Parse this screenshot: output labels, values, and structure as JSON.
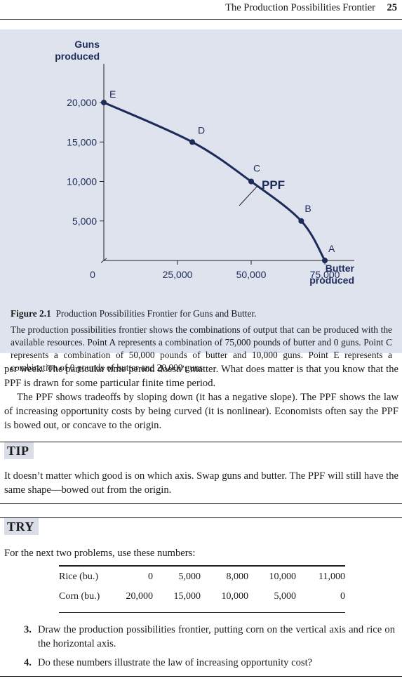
{
  "header": {
    "running_title": "The Production Possibilities Frontier",
    "page_number": "25"
  },
  "figure": {
    "label": "Figure 2.1",
    "title": "Production Possibilities Frontier for Guns and Butter.",
    "caption": "The production possibilities frontier shows the combinations of output that can be produced with the available resources. Point A represents a combination of 75,000 pounds of butter and 0 guns. Point C represents a combination of 50,000 pounds of butter and 10,000 guns. Point E represents a combination of 0 pounds of butter and 20,000 guns."
  },
  "chart_data": {
    "type": "line",
    "ylabel": [
      "Guns",
      "produced"
    ],
    "xlabel": [
      "Butter",
      "produced"
    ],
    "curve_label": "PPF",
    "xlim": [
      0,
      85000
    ],
    "ylim": [
      0,
      24000
    ],
    "x_ticks": [
      0,
      25000,
      50000,
      75000
    ],
    "x_tick_labels": [
      "0",
      "25,000",
      "50,000",
      "75,000"
    ],
    "y_ticks": [
      5000,
      10000,
      15000,
      20000
    ],
    "y_tick_labels": [
      "5,000",
      "10,000",
      "15,000",
      "20,000"
    ],
    "points": [
      {
        "label": "E",
        "x": 0,
        "y": 20000
      },
      {
        "label": "D",
        "x": 30000,
        "y": 15000
      },
      {
        "label": "C",
        "x": 50000,
        "y": 10000
      },
      {
        "label": "B",
        "x": 67000,
        "y": 5000
      },
      {
        "label": "A",
        "x": 75000,
        "y": 0
      }
    ],
    "colors": {
      "curve": "#1c2b5a",
      "text": "#1c2b5a",
      "background": "#dfe3ee"
    }
  },
  "body": {
    "para1": "per week. The particular time period doesn’t matter. What does matter is that you know that the PPF is drawn for some particular finite time period.",
    "para2": "The PPF shows tradeoffs by sloping down (it has a negative slope). The PPF shows the law of increasing opportunity costs by being curved (it is nonlinear). Economists often say the PPF is bowed out, or concave to the origin."
  },
  "tip": {
    "label": "TIP",
    "text": "It doesn’t matter which good is on which axis. Swap guns and butter. The PPF will still have the same shape—bowed out from the origin."
  },
  "try": {
    "label": "TRY",
    "intro": "For the next two problems, use these numbers:",
    "table": [
      {
        "label": "Rice (bu.)",
        "values": [
          "0",
          "5,000",
          "8,000",
          "10,000",
          "11,000"
        ]
      },
      {
        "label": "Corn (bu.)",
        "values": [
          "20,000",
          "15,000",
          "10,000",
          "5,000",
          "0"
        ]
      }
    ],
    "problems": [
      {
        "num": "3.",
        "text": "Draw the production possibilities frontier, putting corn on the vertical axis and rice on the horizontal axis."
      },
      {
        "num": "4.",
        "text": "Do these numbers illustrate the law of increasing opportunity cost?"
      }
    ]
  }
}
